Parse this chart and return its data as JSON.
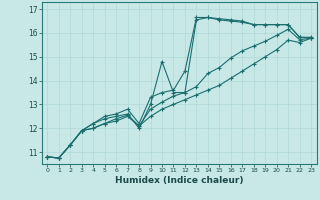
{
  "xlabel": "Humidex (Indice chaleur)",
  "bg_color": "#c8e8e8",
  "grid_color": "#b0d8d8",
  "line_color": "#1a6e6e",
  "xlim": [
    -0.5,
    23.5
  ],
  "ylim": [
    10.5,
    17.3
  ],
  "yticks": [
    11,
    12,
    13,
    14,
    15,
    16,
    17
  ],
  "xticks": [
    0,
    1,
    2,
    3,
    4,
    5,
    6,
    7,
    8,
    9,
    10,
    11,
    12,
    13,
    14,
    15,
    16,
    17,
    18,
    19,
    20,
    21,
    22,
    23
  ],
  "line1_x": [
    0,
    1,
    2,
    3,
    4,
    5,
    6,
    7,
    8,
    9,
    10,
    11,
    12,
    13,
    14,
    15,
    16,
    17,
    18,
    19,
    20,
    21,
    22,
    23
  ],
  "line1_y": [
    10.8,
    10.75,
    11.3,
    11.9,
    12.2,
    12.4,
    12.5,
    12.6,
    12.0,
    13.0,
    14.8,
    13.5,
    13.5,
    16.55,
    16.65,
    16.6,
    16.55,
    16.5,
    16.35,
    16.35,
    16.35,
    16.35,
    15.82,
    15.82
  ],
  "line2_x": [
    0,
    1,
    2,
    3,
    4,
    5,
    6,
    7,
    8,
    9,
    10,
    11,
    12,
    13,
    14,
    15,
    16,
    17,
    18,
    19,
    20,
    21,
    22,
    23
  ],
  "line2_y": [
    10.8,
    10.75,
    11.3,
    11.9,
    12.2,
    12.5,
    12.6,
    12.8,
    12.2,
    13.3,
    13.5,
    13.6,
    14.4,
    16.65,
    16.65,
    16.55,
    16.5,
    16.45,
    16.35,
    16.35,
    16.35,
    16.35,
    15.82,
    15.78
  ],
  "line3_x": [
    0,
    1,
    2,
    3,
    4,
    5,
    6,
    7,
    8,
    9,
    10,
    11,
    12,
    13,
    14,
    15,
    16,
    17,
    18,
    19,
    20,
    21,
    22,
    23
  ],
  "line3_y": [
    10.8,
    10.75,
    11.3,
    11.9,
    12.0,
    12.2,
    12.4,
    12.55,
    12.1,
    12.8,
    13.1,
    13.35,
    13.5,
    13.75,
    14.3,
    14.55,
    14.95,
    15.25,
    15.45,
    15.65,
    15.9,
    16.15,
    15.72,
    15.78
  ],
  "line4_x": [
    0,
    1,
    2,
    3,
    4,
    5,
    6,
    7,
    8,
    9,
    10,
    11,
    12,
    13,
    14,
    15,
    16,
    17,
    18,
    19,
    20,
    21,
    22,
    23
  ],
  "line4_y": [
    10.8,
    10.75,
    11.3,
    11.9,
    12.0,
    12.2,
    12.3,
    12.5,
    12.1,
    12.5,
    12.8,
    13.0,
    13.2,
    13.4,
    13.6,
    13.8,
    14.1,
    14.4,
    14.7,
    15.0,
    15.3,
    15.7,
    15.6,
    15.78
  ]
}
